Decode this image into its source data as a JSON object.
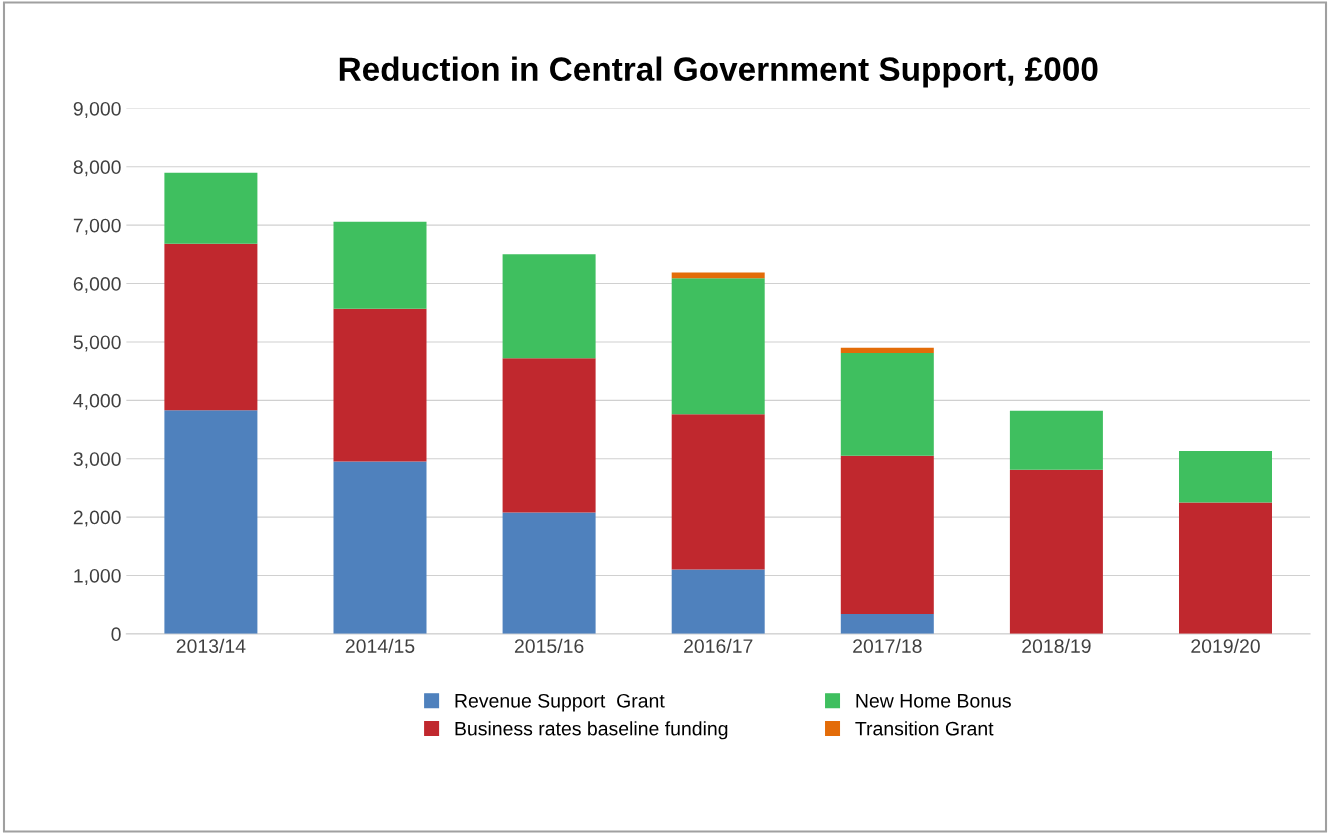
{
  "chart_data": {
    "type": "bar",
    "title": "Reduction in Central Government Support, £000",
    "stacked": true,
    "categories": [
      "2013/14",
      "2014/15",
      "2015/16",
      "2016/17",
      "2017/18",
      "2018/19",
      "2019/20"
    ],
    "series": [
      {
        "name": "Revenue Support  Grant",
        "color": "#4f81bd",
        "values": [
          3830,
          2950,
          2080,
          1100,
          340,
          0,
          0
        ]
      },
      {
        "name": "Business rates baseline funding",
        "color": "#c0282e",
        "values": [
          2850,
          2620,
          2640,
          2660,
          2710,
          2810,
          2250
        ]
      },
      {
        "name": "New Home Bonus",
        "color": "#3fbf5f",
        "values": [
          1220,
          1490,
          1780,
          2330,
          1760,
          1010,
          880
        ]
      },
      {
        "name": "Transition Grant",
        "color": "#e36c09",
        "values": [
          0,
          0,
          0,
          100,
          90,
          0,
          0
        ]
      }
    ],
    "ylim": [
      0,
      9000
    ],
    "yticks": [
      {
        "value": 0,
        "label": "0"
      },
      {
        "value": 1000,
        "label": "1,000"
      },
      {
        "value": 2000,
        "label": "2,000"
      },
      {
        "value": 3000,
        "label": "3,000"
      },
      {
        "value": 4000,
        "label": "4,000"
      },
      {
        "value": 5000,
        "label": "5,000"
      },
      {
        "value": 6000,
        "label": "6,000"
      },
      {
        "value": 7000,
        "label": "7,000"
      },
      {
        "value": 8000,
        "label": "8,000"
      },
      {
        "value": 9000,
        "label": "9,000"
      }
    ],
    "grid": "y",
    "legend": "bottom"
  }
}
